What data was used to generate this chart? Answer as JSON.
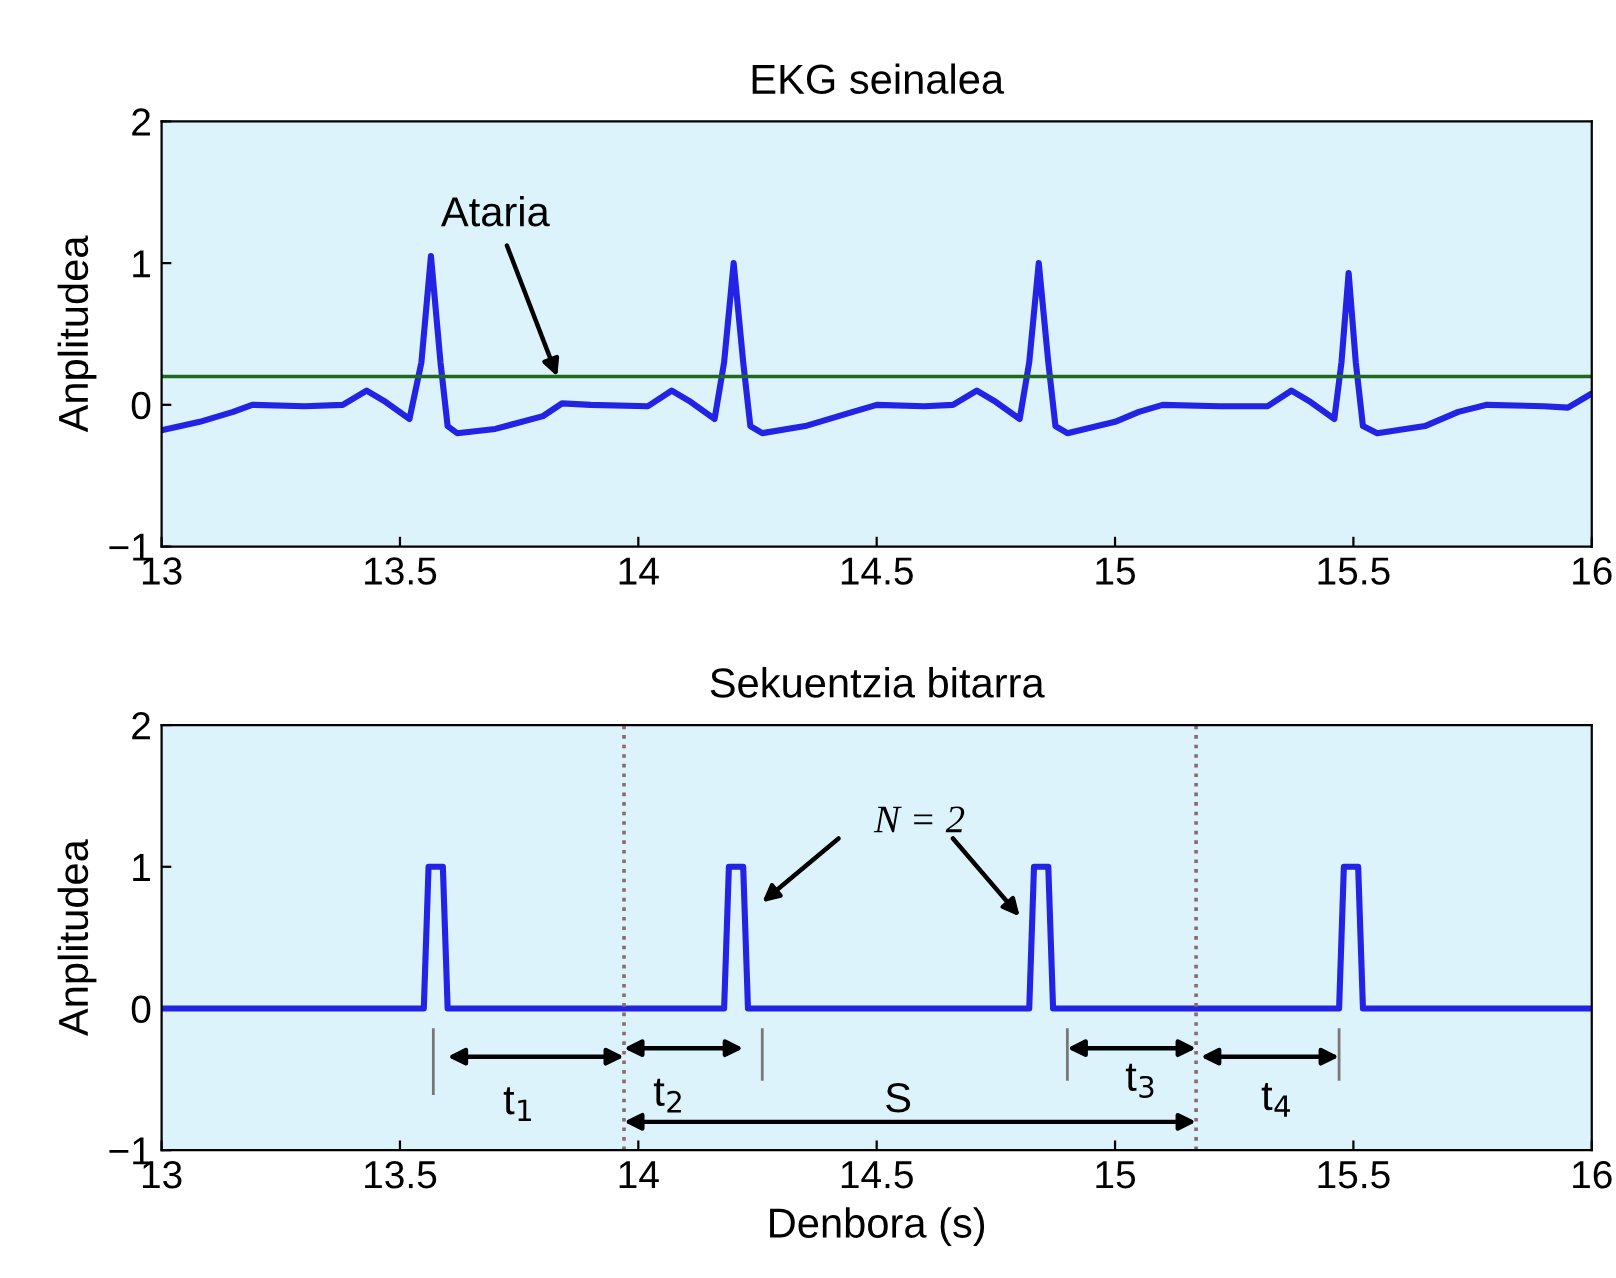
{
  "chart_data": [
    {
      "type": "line",
      "title": "EKG seinalea",
      "ylabel": "Anplitudea",
      "x": [
        13.0,
        13.08,
        13.15,
        13.19,
        13.3,
        13.38,
        13.43,
        13.47,
        13.52,
        13.545,
        13.565,
        13.585,
        13.6,
        13.62,
        13.7,
        13.8,
        13.84,
        13.9,
        14.02,
        14.07,
        14.11,
        14.16,
        14.18,
        14.2,
        14.22,
        14.235,
        14.26,
        14.35,
        14.45,
        14.5,
        14.6,
        14.66,
        14.71,
        14.75,
        14.8,
        14.82,
        14.84,
        14.86,
        14.875,
        14.9,
        15.0,
        15.05,
        15.1,
        15.22,
        15.32,
        15.37,
        15.41,
        15.46,
        15.475,
        15.49,
        15.505,
        15.52,
        15.55,
        15.65,
        15.72,
        15.78,
        15.9,
        15.95,
        16.0
      ],
      "series": [
        {
          "color": "#2323e6",
          "values": [
            -0.18,
            -0.12,
            -0.05,
            0.0,
            -0.01,
            0.0,
            0.1,
            0.02,
            -0.1,
            0.3,
            1.05,
            0.3,
            -0.15,
            -0.2,
            -0.17,
            -0.08,
            0.01,
            0.0,
            -0.01,
            0.1,
            0.02,
            -0.1,
            0.3,
            1.0,
            0.3,
            -0.15,
            -0.2,
            -0.15,
            -0.05,
            0.0,
            -0.01,
            0.0,
            0.1,
            0.02,
            -0.1,
            0.3,
            1.0,
            0.3,
            -0.15,
            -0.2,
            -0.12,
            -0.05,
            0.0,
            -0.01,
            -0.01,
            0.1,
            0.02,
            -0.1,
            0.3,
            0.93,
            0.3,
            -0.15,
            -0.2,
            -0.15,
            -0.05,
            0.0,
            -0.01,
            -0.02,
            0.08
          ]
        }
      ],
      "ref_lines": [
        {
          "axis": "y",
          "value": 0.2,
          "color": "#1e6b1e",
          "line_style": "solid"
        }
      ],
      "annotations": [
        {
          "text": "Ataria",
          "x": 13.83,
          "y": 0.2
        }
      ],
      "xlim": [
        13,
        16
      ],
      "ylim": [
        -1,
        2
      ],
      "xticks": [
        13,
        13.5,
        14,
        14.5,
        15,
        15.5,
        16
      ],
      "yticks": [
        {
          "value": -1,
          "label": "−1"
        },
        0,
        1,
        2
      ]
    },
    {
      "type": "line",
      "title": "Sekuentzia bitarra",
      "ylabel": "Anplitudea",
      "xlabel": "Denbora (s)",
      "x": [
        13.0,
        13.55,
        13.56,
        13.59,
        13.6,
        14.18,
        14.19,
        14.22,
        14.23,
        14.82,
        14.83,
        14.86,
        14.87,
        15.47,
        15.48,
        15.51,
        15.52,
        16.0
      ],
      "series": [
        {
          "color": "#2323e6",
          "values": [
            0,
            0,
            1,
            1,
            0,
            0,
            1,
            1,
            0,
            0,
            1,
            1,
            0,
            0,
            1,
            1,
            0,
            0
          ]
        }
      ],
      "ref_lines": [
        {
          "axis": "x",
          "value": 13.97,
          "color": "#8a6a6a",
          "line_style": "dotted"
        },
        {
          "axis": "x",
          "value": 15.17,
          "color": "#8a6a6a",
          "line_style": "dotted"
        }
      ],
      "annotations": [
        "t$_{1}$",
        "t$_{2}$",
        "S",
        "t$_{3}$",
        "t$_{4}$",
        "N = 2"
      ],
      "xlim": [
        13,
        16
      ],
      "ylim": [
        -1,
        2
      ],
      "xticks": [
        13,
        13.5,
        14,
        14.5,
        15,
        15.5,
        16
      ],
      "yticks": [
        {
          "value": -1,
          "label": "−1"
        },
        0,
        1,
        2
      ]
    }
  ]
}
